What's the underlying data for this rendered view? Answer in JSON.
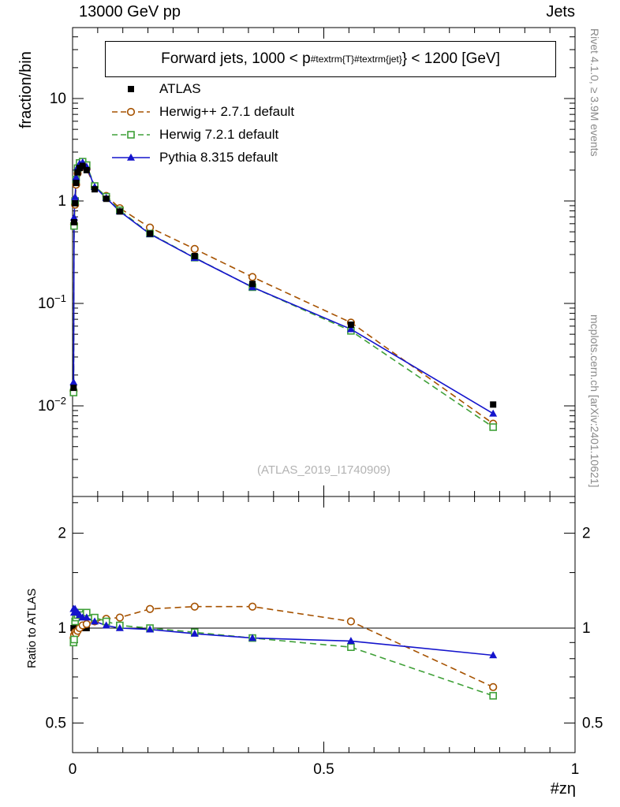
{
  "header": {
    "left": "13000 GeV pp",
    "right": "Jets"
  },
  "title": {
    "prefix": "Forward jets, 1000 < p",
    "sub": "#textrm{T}",
    "sup": "#textrm{jet}",
    "suffix": "} < 1200 [GeV]"
  },
  "watermark": "(ATLAS_2019_I1740909)",
  "side_notes": {
    "top": "Rivet 4.1.0, ≥ 3.9M events",
    "bottom": "mcplots.cern.ch [arXiv:2401.10621]"
  },
  "axes": {
    "y_title": "fraction/bin",
    "ratio_title": "Ratio to ATLAS",
    "x_title": "#zη",
    "y_ticks": [
      {
        "v": 10,
        "base": "10",
        "sup": ""
      },
      {
        "v": 1,
        "base": "1",
        "sup": ""
      },
      {
        "v": 0.1,
        "base": "10",
        "sup": "−1"
      },
      {
        "v": 0.01,
        "base": "10",
        "sup": "−2"
      }
    ],
    "ratio_ticks": [
      {
        "v": 2,
        "label": "2"
      },
      {
        "v": 1,
        "label": "1"
      },
      {
        "v": 0.5,
        "label": "0.5"
      }
    ],
    "x_ticks": [
      {
        "v": 0,
        "label": "0"
      },
      {
        "v": 0.5,
        "label": "0.5"
      },
      {
        "v": 1,
        "label": "1"
      }
    ]
  },
  "legend": [
    {
      "label": "ATLAS",
      "marker": "square-filled",
      "color": "#000000",
      "line": "none"
    },
    {
      "label": "Herwig++ 2.7.1 default",
      "marker": "circle-open",
      "color": "#a65200",
      "line": "dashed"
    },
    {
      "label": "Herwig 7.2.1 default",
      "marker": "square-open",
      "color": "#3fa038",
      "line": "dashed"
    },
    {
      "label": "Pythia 8.315 default",
      "marker": "triangle-filled",
      "color": "#1414cc",
      "line": "solid"
    }
  ],
  "chart_data": {
    "type": "line",
    "title": "Forward jets, 1000 < pT^jet < 1200 [GeV]",
    "xlabel": "#zη",
    "ylabel": "fraction/bin",
    "ratio_label": "Ratio to ATLAS",
    "x_range": [
      0,
      1
    ],
    "y_scale": "log",
    "y_range": [
      0.0013,
      45
    ],
    "ratio_scale": "log",
    "ratio_range": [
      0.4,
      2.6
    ],
    "legend_position": "top-left",
    "grid": false,
    "x": [
      0.002,
      0.003,
      0.005,
      0.007,
      0.01,
      0.014,
      0.02,
      0.028,
      0.044,
      0.067,
      0.094,
      0.154,
      0.243,
      0.358,
      0.554,
      0.837
    ],
    "series": [
      {
        "name": "Herwig++ 2.7.1 default",
        "color": "#a65200",
        "line": "dashed",
        "marker": "circle-open",
        "values": [
          0.014,
          0.59,
          0.92,
          1.44,
          1.86,
          2.1,
          2.24,
          2.06,
          1.37,
          1.12,
          0.85,
          0.55,
          0.34,
          0.181,
          0.065,
          0.0067
        ]
      },
      {
        "name": "Herwig 7.2.1 default",
        "color": "#3fa038",
        "line": "dashed",
        "marker": "square-open",
        "values": [
          0.0135,
          0.57,
          1.0,
          1.62,
          2.09,
          2.35,
          2.42,
          2.24,
          1.4,
          1.1,
          0.81,
          0.48,
          0.28,
          0.144,
          0.054,
          0.0062
        ]
      },
      {
        "name": "Pythia 8.315 default",
        "color": "#1414cc",
        "line": "solid",
        "marker": "triangle-filled",
        "values": [
          0.017,
          0.69,
          1.09,
          1.7,
          2.13,
          2.31,
          2.38,
          2.16,
          1.37,
          1.07,
          0.79,
          0.475,
          0.278,
          0.144,
          0.056,
          0.0084
        ]
      },
      {
        "name": "ATLAS",
        "color": "#000000",
        "line": "none",
        "marker": "square-filled",
        "values": [
          0.015,
          0.62,
          0.95,
          1.5,
          1.9,
          2.1,
          2.2,
          2.0,
          1.3,
          1.05,
          0.79,
          0.48,
          0.29,
          0.155,
          0.062,
          0.0103
        ]
      }
    ],
    "ratio": {
      "reference": 1,
      "series": [
        {
          "name": "ATLAS",
          "color": "#000000",
          "line": "none",
          "marker": "square-filled",
          "values": [
            1,
            1,
            1,
            1,
            1,
            1,
            1,
            1,
            null,
            null,
            null,
            null,
            null,
            null,
            null,
            null
          ]
        },
        {
          "name": "Herwig++ 2.7.1 default",
          "color": "#a65200",
          "line": "dashed",
          "marker": "circle-open",
          "values": [
            0.93,
            0.95,
            0.97,
            0.96,
            0.98,
            1.0,
            1.02,
            1.03,
            1.05,
            1.07,
            1.08,
            1.15,
            1.17,
            1.17,
            1.05,
            0.65
          ]
        },
        {
          "name": "Herwig 7.2.1 default",
          "color": "#3fa038",
          "line": "dashed",
          "marker": "square-open",
          "values": [
            0.9,
            0.92,
            1.05,
            1.08,
            1.1,
            1.12,
            1.1,
            1.12,
            1.08,
            1.05,
            1.02,
            1.0,
            0.97,
            0.93,
            0.87,
            0.61
          ]
        },
        {
          "name": "Pythia 8.315 default",
          "color": "#1414cc",
          "line": "solid",
          "marker": "triangle-filled",
          "values": [
            1.15,
            1.12,
            1.15,
            1.13,
            1.12,
            1.1,
            1.08,
            1.08,
            1.05,
            1.02,
            1.0,
            0.99,
            0.96,
            0.93,
            0.91,
            0.82
          ]
        }
      ]
    }
  }
}
